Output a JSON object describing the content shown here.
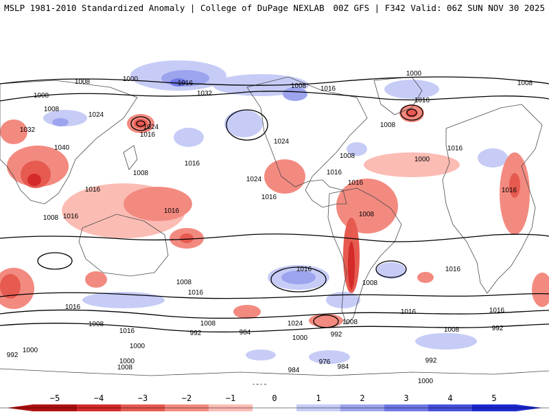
{
  "header": {
    "left": "MSLP 1981-2010 Standardized Anomaly | College of DuPage NEXLAB",
    "right": "00Z GFS | F342 Valid: 06Z SUN NOV 30 2025"
  },
  "colors": {
    "neg5": "#b01010",
    "neg4": "#d42a2a",
    "neg3": "#e65a50",
    "neg2": "#f38a80",
    "neg1": "#fbbcb4",
    "zero": "#ffffff",
    "pos1": "#c6ccf6",
    "pos2": "#9ca4ee",
    "pos3": "#6f78e6",
    "pos4": "#4650dc",
    "pos5": "#1e28d2",
    "contour": "#000000",
    "coast": "#4a4a4a"
  },
  "colorbar": {
    "ticks": [
      "−5",
      "−4",
      "−3",
      "−2",
      "−1",
      "0",
      "1",
      "2",
      "3",
      "4",
      "5"
    ]
  },
  "contour_labels": [
    "1008",
    "1000",
    "1016",
    "1008",
    "1016",
    "1008",
    "1000",
    "1008",
    "1008",
    "1024",
    "1032",
    "1024",
    "1016",
    "1040",
    "1008",
    "1016",
    "1032",
    "1024",
    "1016",
    "1008",
    "1016",
    "1024",
    "1016",
    "1016",
    "1000",
    "1008",
    "1016",
    "1016",
    "1016",
    "1008",
    "1016",
    "1016",
    "1008",
    "1016",
    "1016",
    "1008",
    "1016",
    "1016",
    "1008",
    "1008",
    "1024",
    "1008",
    "1016",
    "1008",
    "1016",
    "1016",
    "1000",
    "1008",
    "992",
    "984",
    "992",
    "1000",
    "992",
    "1000",
    "992",
    "984",
    "976",
    "984",
    "992",
    "1008",
    "1000",
    "1008",
    "1016",
    "1000",
    "1008"
  ]
}
